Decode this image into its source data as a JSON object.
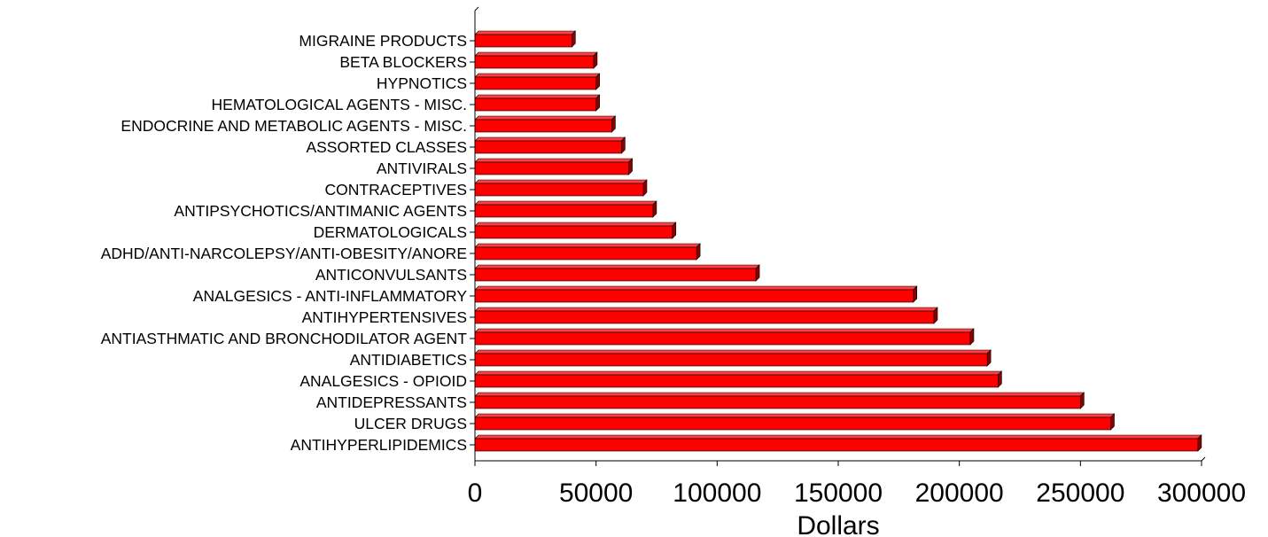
{
  "chart_data": {
    "type": "bar",
    "orientation": "horizontal",
    "title": "",
    "xlabel": "Dollars",
    "ylabel": "",
    "xlim": [
      0,
      300000
    ],
    "x_ticks": [
      "0",
      "50000",
      "100000",
      "150000",
      "200000",
      "250000",
      "300000"
    ],
    "grid": false,
    "legend": "none",
    "bar_color": "#ff0000",
    "bar_shade_color": "#8b0000",
    "categories": [
      "MIGRAINE PRODUCTS",
      "BETA BLOCKERS",
      "HYPNOTICS",
      "HEMATOLOGICAL AGENTS - MISC.",
      "ENDOCRINE AND METABOLIC AGENTS - MISC.",
      "ASSORTED CLASSES",
      "ANTIVIRALS",
      "CONTRACEPTIVES",
      "ANTIPSYCHOTICS/ANTIMANIC AGENTS",
      "DERMATOLOGICALS",
      "ADHD/ANTI-NARCOLEPSY/ANTI-OBESITY/ANORE",
      "ANTICONVULSANTS",
      "ANALGESICS - ANTI-INFLAMMATORY",
      "ANTIHYPERTENSIVES",
      "ANTIASTHMATIC AND BRONCHODILATOR AGENT",
      "ANTIDIABETICS",
      "ANALGESICS - OPIOID",
      "ANTIDEPRESSANTS",
      "ULCER DRUGS",
      "ANTIHYPERLIPIDEMICS"
    ],
    "values": [
      40000,
      49000,
      50000,
      50000,
      56500,
      60500,
      63500,
      69500,
      73500,
      81500,
      91500,
      116000,
      181000,
      189500,
      204500,
      211500,
      216000,
      250000,
      262500,
      298500
    ]
  }
}
